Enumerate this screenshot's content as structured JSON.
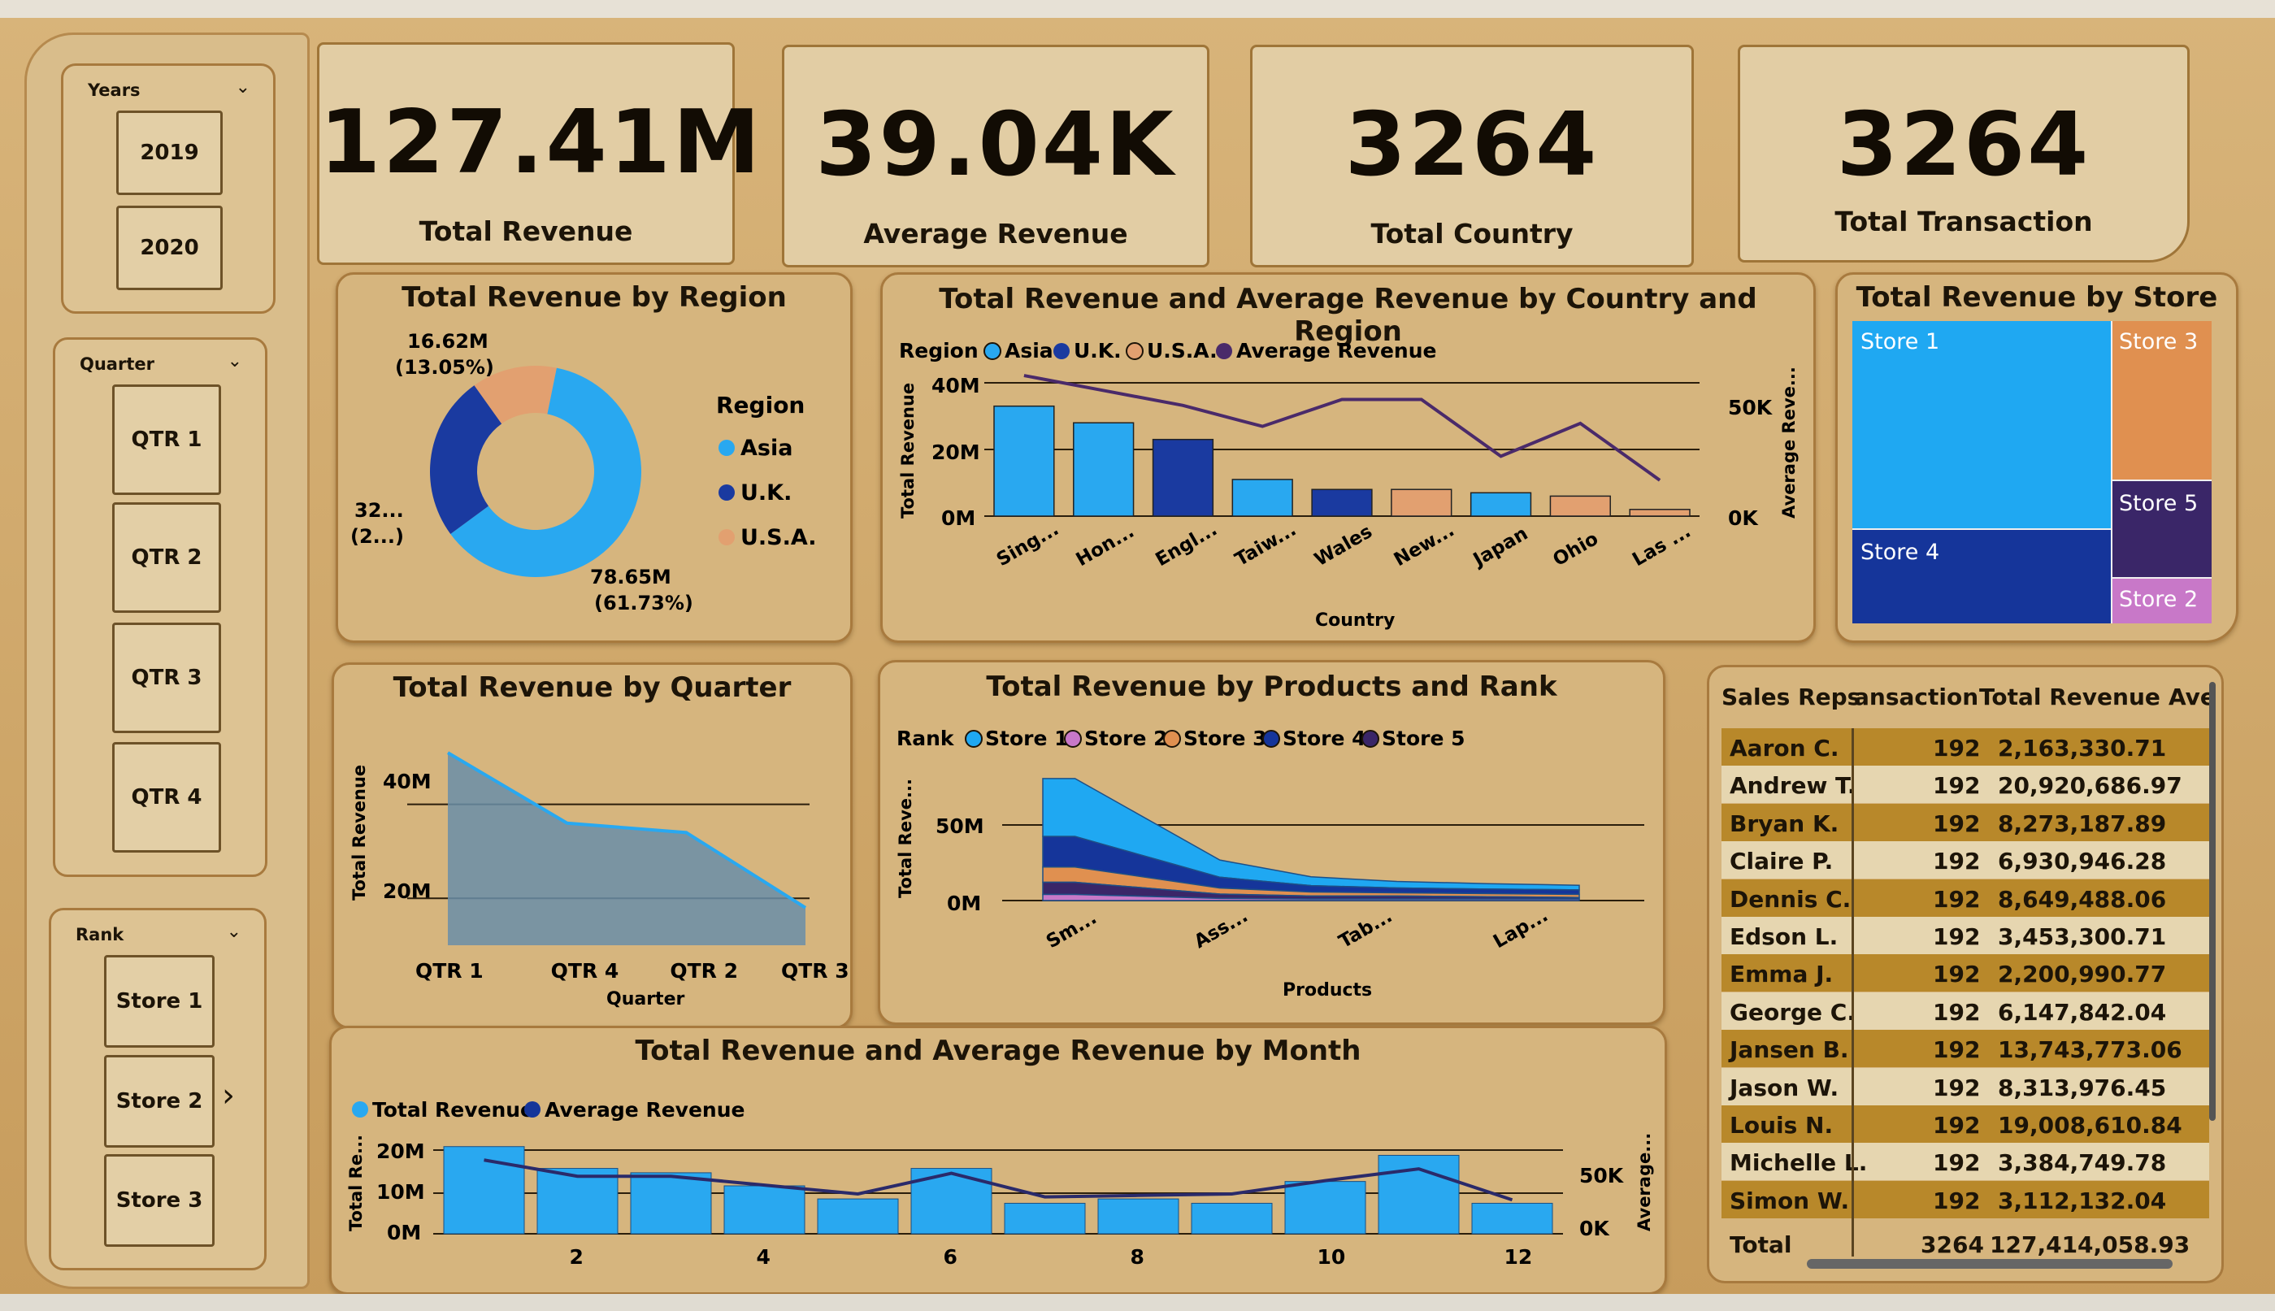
{
  "kpis": [
    {
      "value": "127.41M",
      "label": "Total Revenue"
    },
    {
      "value": "39.04K",
      "label": "Average Revenue"
    },
    {
      "value": "3264",
      "label": "Total Country"
    },
    {
      "value": "3264",
      "label": "Total Transaction"
    }
  ],
  "slicers": {
    "years": {
      "title": "Years",
      "items": [
        "2019",
        "2020"
      ]
    },
    "quarter": {
      "title": "Quarter",
      "items": [
        "QTR 1",
        "QTR 2",
        "QTR 3",
        "QTR 4"
      ]
    },
    "rank": {
      "title": "Rank",
      "items": [
        "Store 1",
        "Store 2",
        "Store 3"
      ]
    }
  },
  "region_panel": {
    "title": "Total Revenue by Region",
    "legend_title": "Region",
    "legend": [
      "Asia",
      "U.K.",
      "U.S.A."
    ],
    "label_top": "16.62M",
    "label_top_pct": "(13.05%)",
    "label_left": "32...",
    "label_left_pct": "(2...)",
    "label_bottom": "78.65M",
    "label_bottom_pct": "(61.73%)"
  },
  "country_panel": {
    "title": "Total Revenue and Average Revenue by Country and Region",
    "legend_title": "Region",
    "legend": [
      "Asia",
      "U.K.",
      "U.S.A.",
      "Average Revenue"
    ],
    "y_left_label": "Total Revenue",
    "y_right_label": "Average Reve...",
    "x_label": "Country",
    "y_ticks": [
      "40M",
      "20M",
      "0M"
    ],
    "y2_ticks": [
      "50K",
      "0K"
    ]
  },
  "store_panel": {
    "title": "Total Revenue by Store",
    "tiles": [
      "Store 1",
      "Store 3",
      "Store 5",
      "Store 4",
      "Store 2"
    ]
  },
  "quarter_panel": {
    "title": "Total Revenue by Quarter",
    "y_label": "Total Revenue",
    "x_label": "Quarter",
    "y_ticks": [
      "40M",
      "20M"
    ]
  },
  "products_panel": {
    "title": "Total Revenue by Products and Rank",
    "legend_title": "Rank",
    "legend": [
      "Store 1",
      "Store 2",
      "Store 3",
      "Store 4",
      "Store 5"
    ],
    "y_label": "Total Reve...",
    "x_label": "Products",
    "y_ticks": [
      "50M",
      "0M"
    ]
  },
  "month_panel": {
    "title": "Total Revenue and Average Revenue by Month",
    "legend": [
      "Total Revenue",
      "Average Revenue"
    ],
    "y_label": "Total Re...",
    "y2_label": "Average...",
    "y_ticks": [
      "20M",
      "10M",
      "0M"
    ],
    "y2_ticks": [
      "50K",
      "0K"
    ]
  },
  "table": {
    "headers": [
      "Sales Reps",
      "ansaction",
      "Total Revenue",
      "Ave"
    ],
    "rows": [
      [
        "Aaron C.",
        "192",
        "2,163,330.71"
      ],
      [
        "Andrew T.",
        "192",
        "20,920,686.97"
      ],
      [
        "Bryan K.",
        "192",
        "8,273,187.89"
      ],
      [
        "Claire P.",
        "192",
        "6,930,946.28"
      ],
      [
        "Dennis C.",
        "192",
        "8,649,488.06"
      ],
      [
        "Edson L.",
        "192",
        "3,453,300.71"
      ],
      [
        "Emma J.",
        "192",
        "2,200,990.77"
      ],
      [
        "George C.",
        "192",
        "6,147,842.04"
      ],
      [
        "Jansen B.",
        "192",
        "13,743,773.06"
      ],
      [
        "Jason W.",
        "192",
        "8,313,976.45"
      ],
      [
        "Louis N.",
        "192",
        "19,008,610.84"
      ],
      [
        "Michelle L.",
        "192",
        "3,384,749.78"
      ],
      [
        "Simon W.",
        "192",
        "3,112,132.04"
      ]
    ],
    "total": [
      "Total",
      "3264",
      "127,414,058.93"
    ]
  },
  "colors": {
    "asia": "#29a8f0",
    "uk": "#1a3aa0",
    "usa": "#e2a070",
    "avg": "#4a2a6a",
    "store1": "#1fa8f2",
    "store2": "#c878c8",
    "store3": "#e09050",
    "store4": "#15359a",
    "store5": "#3a2668",
    "panel": "#d6b57e"
  },
  "chart_data": [
    {
      "type": "pie",
      "title": "Total Revenue by Region",
      "categories": [
        "Asia",
        "U.K.",
        "U.S.A."
      ],
      "values": [
        78.65,
        32.14,
        16.62
      ],
      "units": "M",
      "percent": [
        61.73,
        25.22,
        13.05
      ]
    },
    {
      "type": "bar",
      "title": "Total Revenue and Average Revenue by Country and Region",
      "categories": [
        "Sing...",
        "Hon...",
        "Engl...",
        "Taiw...",
        "Wales",
        "New...",
        "Japan",
        "Ohio",
        "Las ..."
      ],
      "series": [
        {
          "name": "Total Revenue",
          "values": [
            33,
            28,
            23,
            11,
            8,
            8,
            7,
            6,
            2
          ],
          "region": [
            "Asia",
            "Asia",
            "U.K.",
            "Asia",
            "U.K.",
            "U.S.A.",
            "Asia",
            "U.S.A.",
            "U.S.A."
          ]
        },
        {
          "name": "Average Revenue",
          "values": [
            47,
            42,
            37,
            30,
            39,
            39,
            20,
            31,
            12
          ]
        }
      ],
      "xlabel": "Country",
      "ylabel": "Total Revenue",
      "y2label": "Average Reve...",
      "ylim": [
        0,
        40
      ],
      "y2lim": [
        0,
        50
      ]
    },
    {
      "type": "area",
      "title": "Total Revenue by Quarter",
      "categories": [
        "QTR 1",
        "QTR 4",
        "QTR 2",
        "QTR 3"
      ],
      "values": [
        51,
        36,
        34,
        18
      ],
      "xlabel": "Quarter",
      "ylabel": "Total Revenue",
      "ylim": [
        10,
        55
      ]
    },
    {
      "type": "area",
      "title": "Total Revenue by Products and Rank",
      "categories": [
        "Sm...",
        "Ass...",
        "Tab...",
        "Lap..."
      ],
      "series": [
        {
          "name": "Store 1",
          "values": [
            38,
            7,
            4,
            3
          ]
        },
        {
          "name": "Store 4",
          "values": [
            20,
            5,
            3,
            3
          ]
        },
        {
          "name": "Store 3",
          "values": [
            10,
            3,
            2,
            2
          ]
        },
        {
          "name": "Store 5",
          "values": [
            8,
            2,
            2,
            1
          ]
        },
        {
          "name": "Store 2",
          "values": [
            4,
            1,
            1,
            1
          ]
        }
      ],
      "xlabel": "Products",
      "ylabel": "Total Reve...",
      "ylim": [
        0,
        80
      ]
    },
    {
      "type": "bar",
      "title": "Total Revenue and Average Revenue by Month",
      "categories": [
        "1",
        "2",
        "3",
        "4",
        "5",
        "6",
        "7",
        "8",
        "9",
        "10",
        "11",
        "12"
      ],
      "series": [
        {
          "name": "Total Revenue",
          "values": [
            20,
            15,
            14,
            11,
            8,
            15,
            7,
            8,
            7,
            12,
            18,
            7
          ]
        },
        {
          "name": "Average Revenue",
          "values": [
            50,
            39,
            39,
            33,
            27,
            41,
            25,
            26,
            27,
            36,
            44,
            23
          ]
        }
      ],
      "ylabel": "Total Re...",
      "y2label": "Average...",
      "ylim": [
        0,
        22
      ],
      "y2lim": [
        0,
        65
      ]
    }
  ]
}
